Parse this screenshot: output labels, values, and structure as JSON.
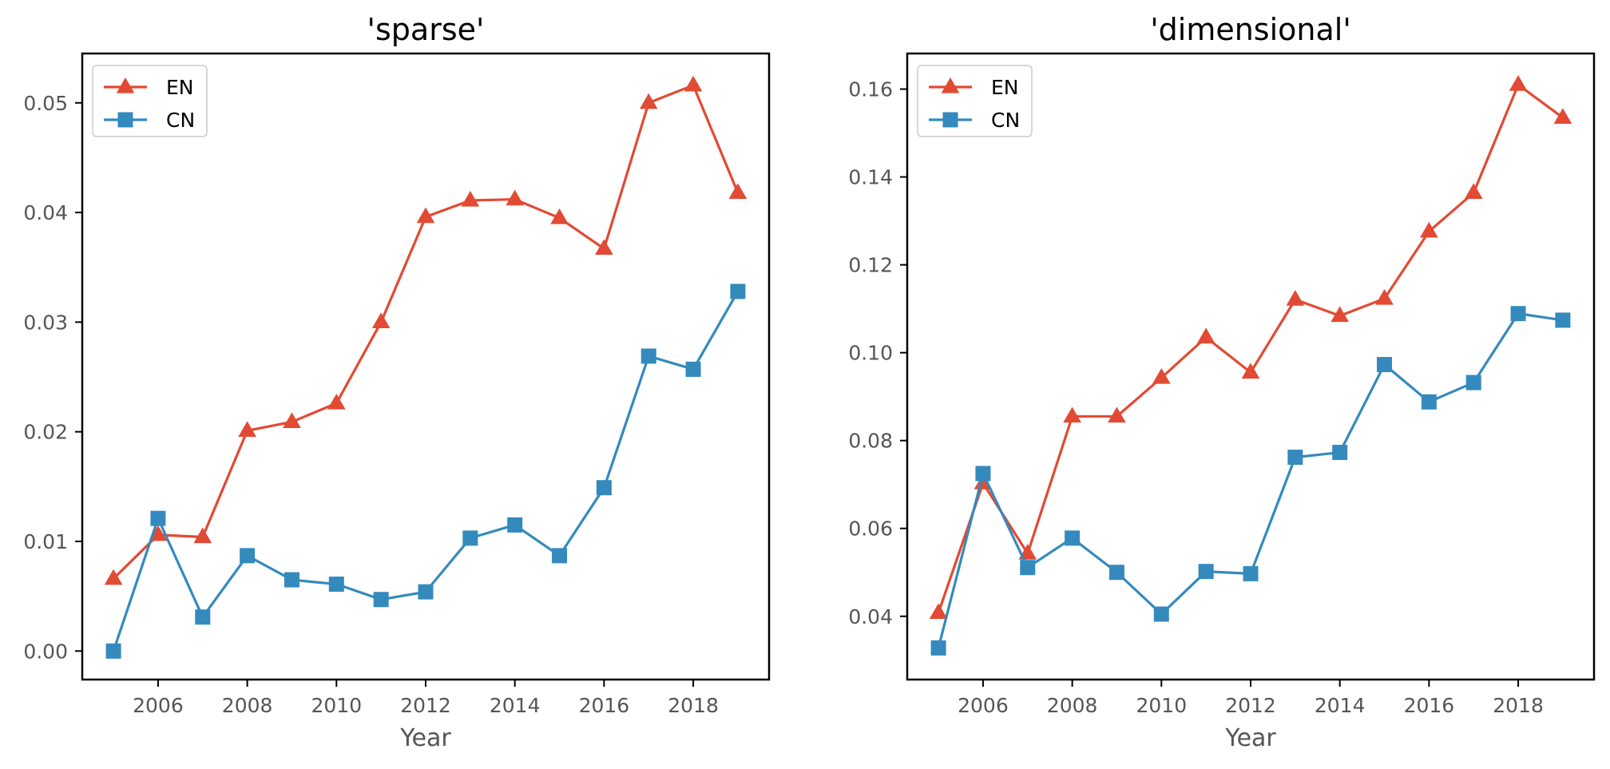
{
  "chart_data": [
    {
      "type": "line",
      "title": "'sparse'",
      "xlabel": "Year",
      "ylabel": "",
      "x": [
        2005,
        2006,
        2007,
        2008,
        2009,
        2010,
        2011,
        2012,
        2013,
        2014,
        2015,
        2016,
        2017,
        2018,
        2019
      ],
      "xlim": [
        2004.3,
        2019.7
      ],
      "ylim": [
        -0.0026,
        0.0545
      ],
      "xticks": [
        2006,
        2008,
        2010,
        2012,
        2014,
        2016,
        2018
      ],
      "xtick_labels": [
        "2006",
        "2008",
        "2010",
        "2012",
        "2014",
        "2016",
        "2018"
      ],
      "yticks": [
        0.0,
        0.01,
        0.02,
        0.03,
        0.04,
        0.05
      ],
      "ytick_labels": [
        "0.00",
        "0.01",
        "0.02",
        "0.03",
        "0.04",
        "0.05"
      ],
      "legend": "upper-left",
      "grid": false,
      "series": [
        {
          "name": "EN",
          "marker": "triangle",
          "color": "#E24A33",
          "values": [
            0.0066,
            0.0106,
            0.0104,
            0.0201,
            0.0209,
            0.0226,
            0.03,
            0.0396,
            0.0411,
            0.0412,
            0.0395,
            0.0367,
            0.05,
            0.0516,
            0.0418
          ]
        },
        {
          "name": "CN",
          "marker": "square",
          "color": "#348ABD",
          "values": [
            0.0,
            0.0121,
            0.0031,
            0.0087,
            0.0065,
            0.0061,
            0.0047,
            0.0054,
            0.0103,
            0.0115,
            0.0087,
            0.0149,
            0.0269,
            0.0257,
            0.0328
          ]
        }
      ]
    },
    {
      "type": "line",
      "title": "'dimensional'",
      "xlabel": "Year",
      "ylabel": "",
      "x": [
        2005,
        2006,
        2007,
        2008,
        2009,
        2010,
        2011,
        2012,
        2013,
        2014,
        2015,
        2016,
        2017,
        2018,
        2019
      ],
      "xlim": [
        2004.3,
        2019.7
      ],
      "ylim": [
        0.0256,
        0.1681
      ],
      "xticks": [
        2006,
        2008,
        2010,
        2012,
        2014,
        2016,
        2018
      ],
      "xtick_labels": [
        "2006",
        "2008",
        "2010",
        "2012",
        "2014",
        "2016",
        "2018"
      ],
      "yticks": [
        0.04,
        0.06,
        0.08,
        0.1,
        0.12,
        0.14,
        0.16
      ],
      "ytick_labels": [
        "0.04",
        "0.06",
        "0.08",
        "0.10",
        "0.12",
        "0.14",
        "0.16"
      ],
      "legend": "upper-left",
      "grid": false,
      "series": [
        {
          "name": "EN",
          "marker": "triangle",
          "color": "#E24A33",
          "values": [
            0.0408,
            0.0703,
            0.0543,
            0.0855,
            0.0855,
            0.0943,
            0.1035,
            0.0955,
            0.1121,
            0.1084,
            0.1123,
            0.1276,
            0.1364,
            0.161,
            0.1535
          ]
        },
        {
          "name": "CN",
          "marker": "square",
          "color": "#348ABD",
          "values": [
            0.0328,
            0.0725,
            0.0511,
            0.0578,
            0.05,
            0.0405,
            0.0502,
            0.0497,
            0.0762,
            0.0773,
            0.0973,
            0.0888,
            0.0932,
            0.1089,
            0.1074
          ]
        }
      ]
    }
  ]
}
